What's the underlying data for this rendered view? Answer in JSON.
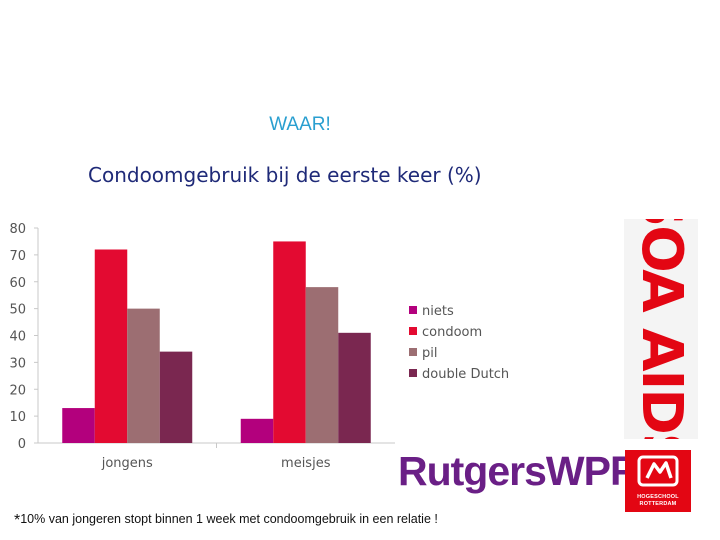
{
  "header": {
    "waar": "WAAR!",
    "title": "Condoomgebruik bij de eerste keer (%)"
  },
  "chart_data": {
    "type": "bar",
    "categories": [
      "jongens",
      "meisjes"
    ],
    "series": [
      {
        "name": "niets",
        "values": [
          13,
          9
        ],
        "color": "#b3007d"
      },
      {
        "name": "condoom",
        "values": [
          72,
          75
        ],
        "color": "#e30a31"
      },
      {
        "name": "pil",
        "values": [
          50,
          58
        ],
        "color": "#9c6e72"
      },
      {
        "name": "double Dutch",
        "values": [
          34,
          41
        ],
        "color": "#7a2750"
      }
    ],
    "yticks": [
      0,
      10,
      20,
      30,
      40,
      50,
      60,
      70,
      80
    ],
    "ylim": [
      0,
      80
    ],
    "grid": false,
    "legend": "right"
  },
  "footnote": {
    "star": "*",
    "text": "10%  van jongeren stopt binnen 1 week met condoomgebruik in een relatie !"
  },
  "logos": {
    "soaids": "SOA AIDS",
    "rutgers": "RutgersWPF",
    "hogeschool_line1": "HOGESCHOOL",
    "hogeschool_line2": "ROTTERDAM"
  },
  "colors": {
    "waar": "#2a9fd0",
    "title": "#1f2a78",
    "soaids": "#e30613",
    "rutgers": "#6a1f86",
    "hogeschool": "#e30613"
  }
}
